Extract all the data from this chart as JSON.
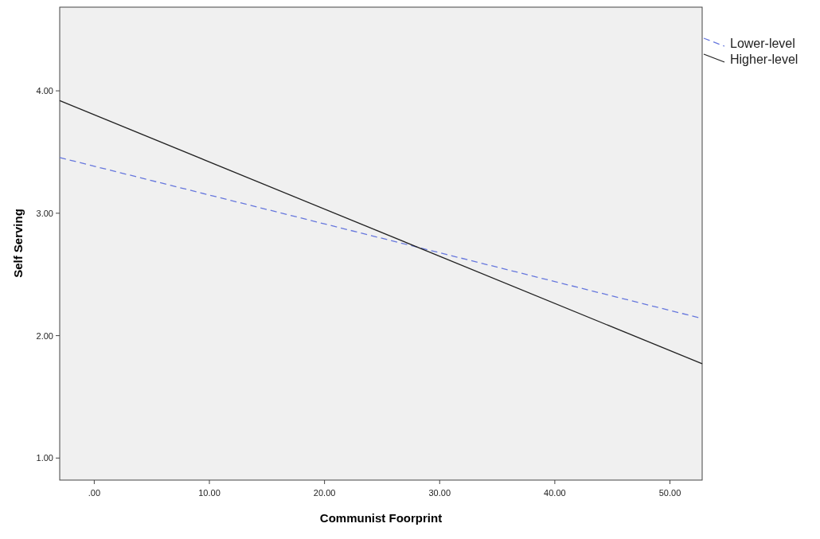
{
  "chart_data": {
    "type": "line",
    "xlabel": "Communist Foorprint",
    "ylabel": "Self Serving",
    "xlim": [
      -3,
      52.8
    ],
    "ylim": [
      0.82,
      4.69
    ],
    "xticks": [
      {
        "value": 0,
        "label": ".00"
      },
      {
        "value": 10,
        "label": "10.00"
      },
      {
        "value": 20,
        "label": "20.00"
      },
      {
        "value": 30,
        "label": "30.00"
      },
      {
        "value": 40,
        "label": "40.00"
      },
      {
        "value": 50,
        "label": "50.00"
      }
    ],
    "yticks": [
      {
        "value": 1,
        "label": "1.00"
      },
      {
        "value": 2,
        "label": "2.00"
      },
      {
        "value": 3,
        "label": "3.00"
      },
      {
        "value": 4,
        "label": "4.00"
      }
    ],
    "x": [
      -3,
      52.8
    ],
    "grid": false,
    "legend": "top right",
    "marker": "none",
    "series": [
      {
        "name": "Lower-level",
        "color": "#6677dd",
        "line_style": "dashed",
        "values": [
          3.455,
          2.14
        ]
      },
      {
        "name": "Higher-level",
        "color": "#222222",
        "line_style": "solid",
        "values": [
          3.92,
          1.77
        ]
      }
    ]
  }
}
